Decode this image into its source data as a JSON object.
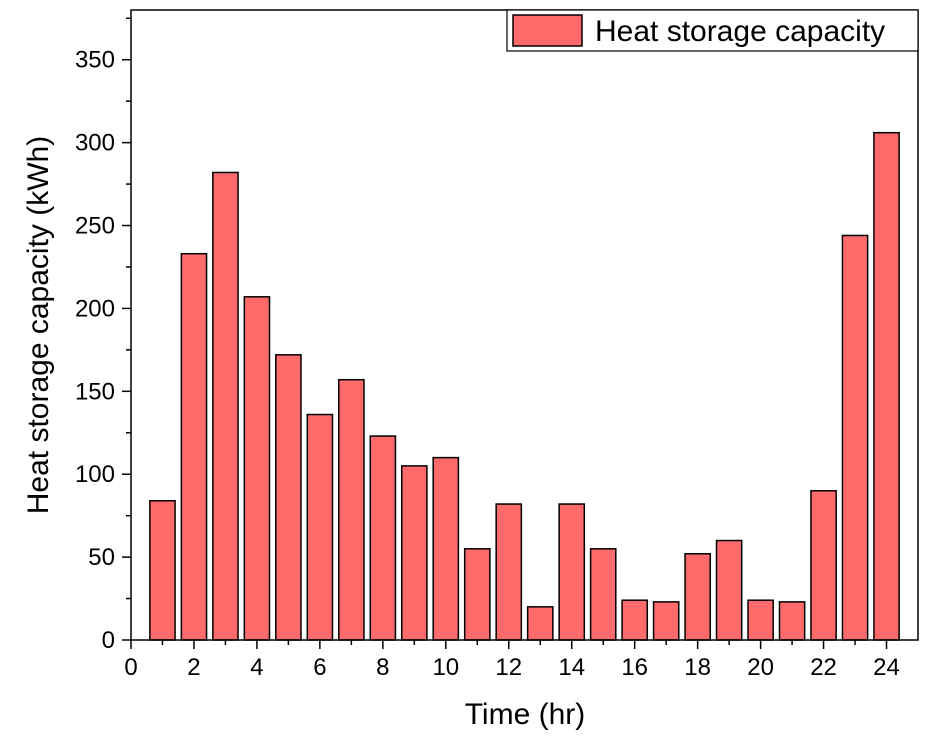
{
  "chart_data": {
    "type": "bar",
    "title": "",
    "xlabel": "Time (hr)",
    "ylabel": "Heat storage capacity (kWh)",
    "xlim": [
      0,
      25
    ],
    "ylim": [
      0,
      380
    ],
    "x_ticks": [
      0,
      2,
      4,
      6,
      8,
      10,
      12,
      14,
      16,
      18,
      20,
      22,
      24
    ],
    "y_ticks": [
      0,
      50,
      100,
      150,
      200,
      250,
      300,
      350
    ],
    "grid": false,
    "legend_position": "top-right",
    "series": [
      {
        "name": "Heat storage capacity",
        "color": "#ff6b6b",
        "x": [
          1,
          2,
          3,
          4,
          5,
          6,
          7,
          8,
          9,
          10,
          11,
          12,
          13,
          14,
          15,
          16,
          17,
          18,
          19,
          20,
          21,
          22,
          23,
          24
        ],
        "values": [
          84,
          233,
          282,
          207,
          172,
          136,
          157,
          123,
          105,
          110,
          55,
          82,
          20,
          82,
          55,
          24,
          23,
          52,
          60,
          24,
          23,
          90,
          244,
          306
        ]
      }
    ]
  }
}
